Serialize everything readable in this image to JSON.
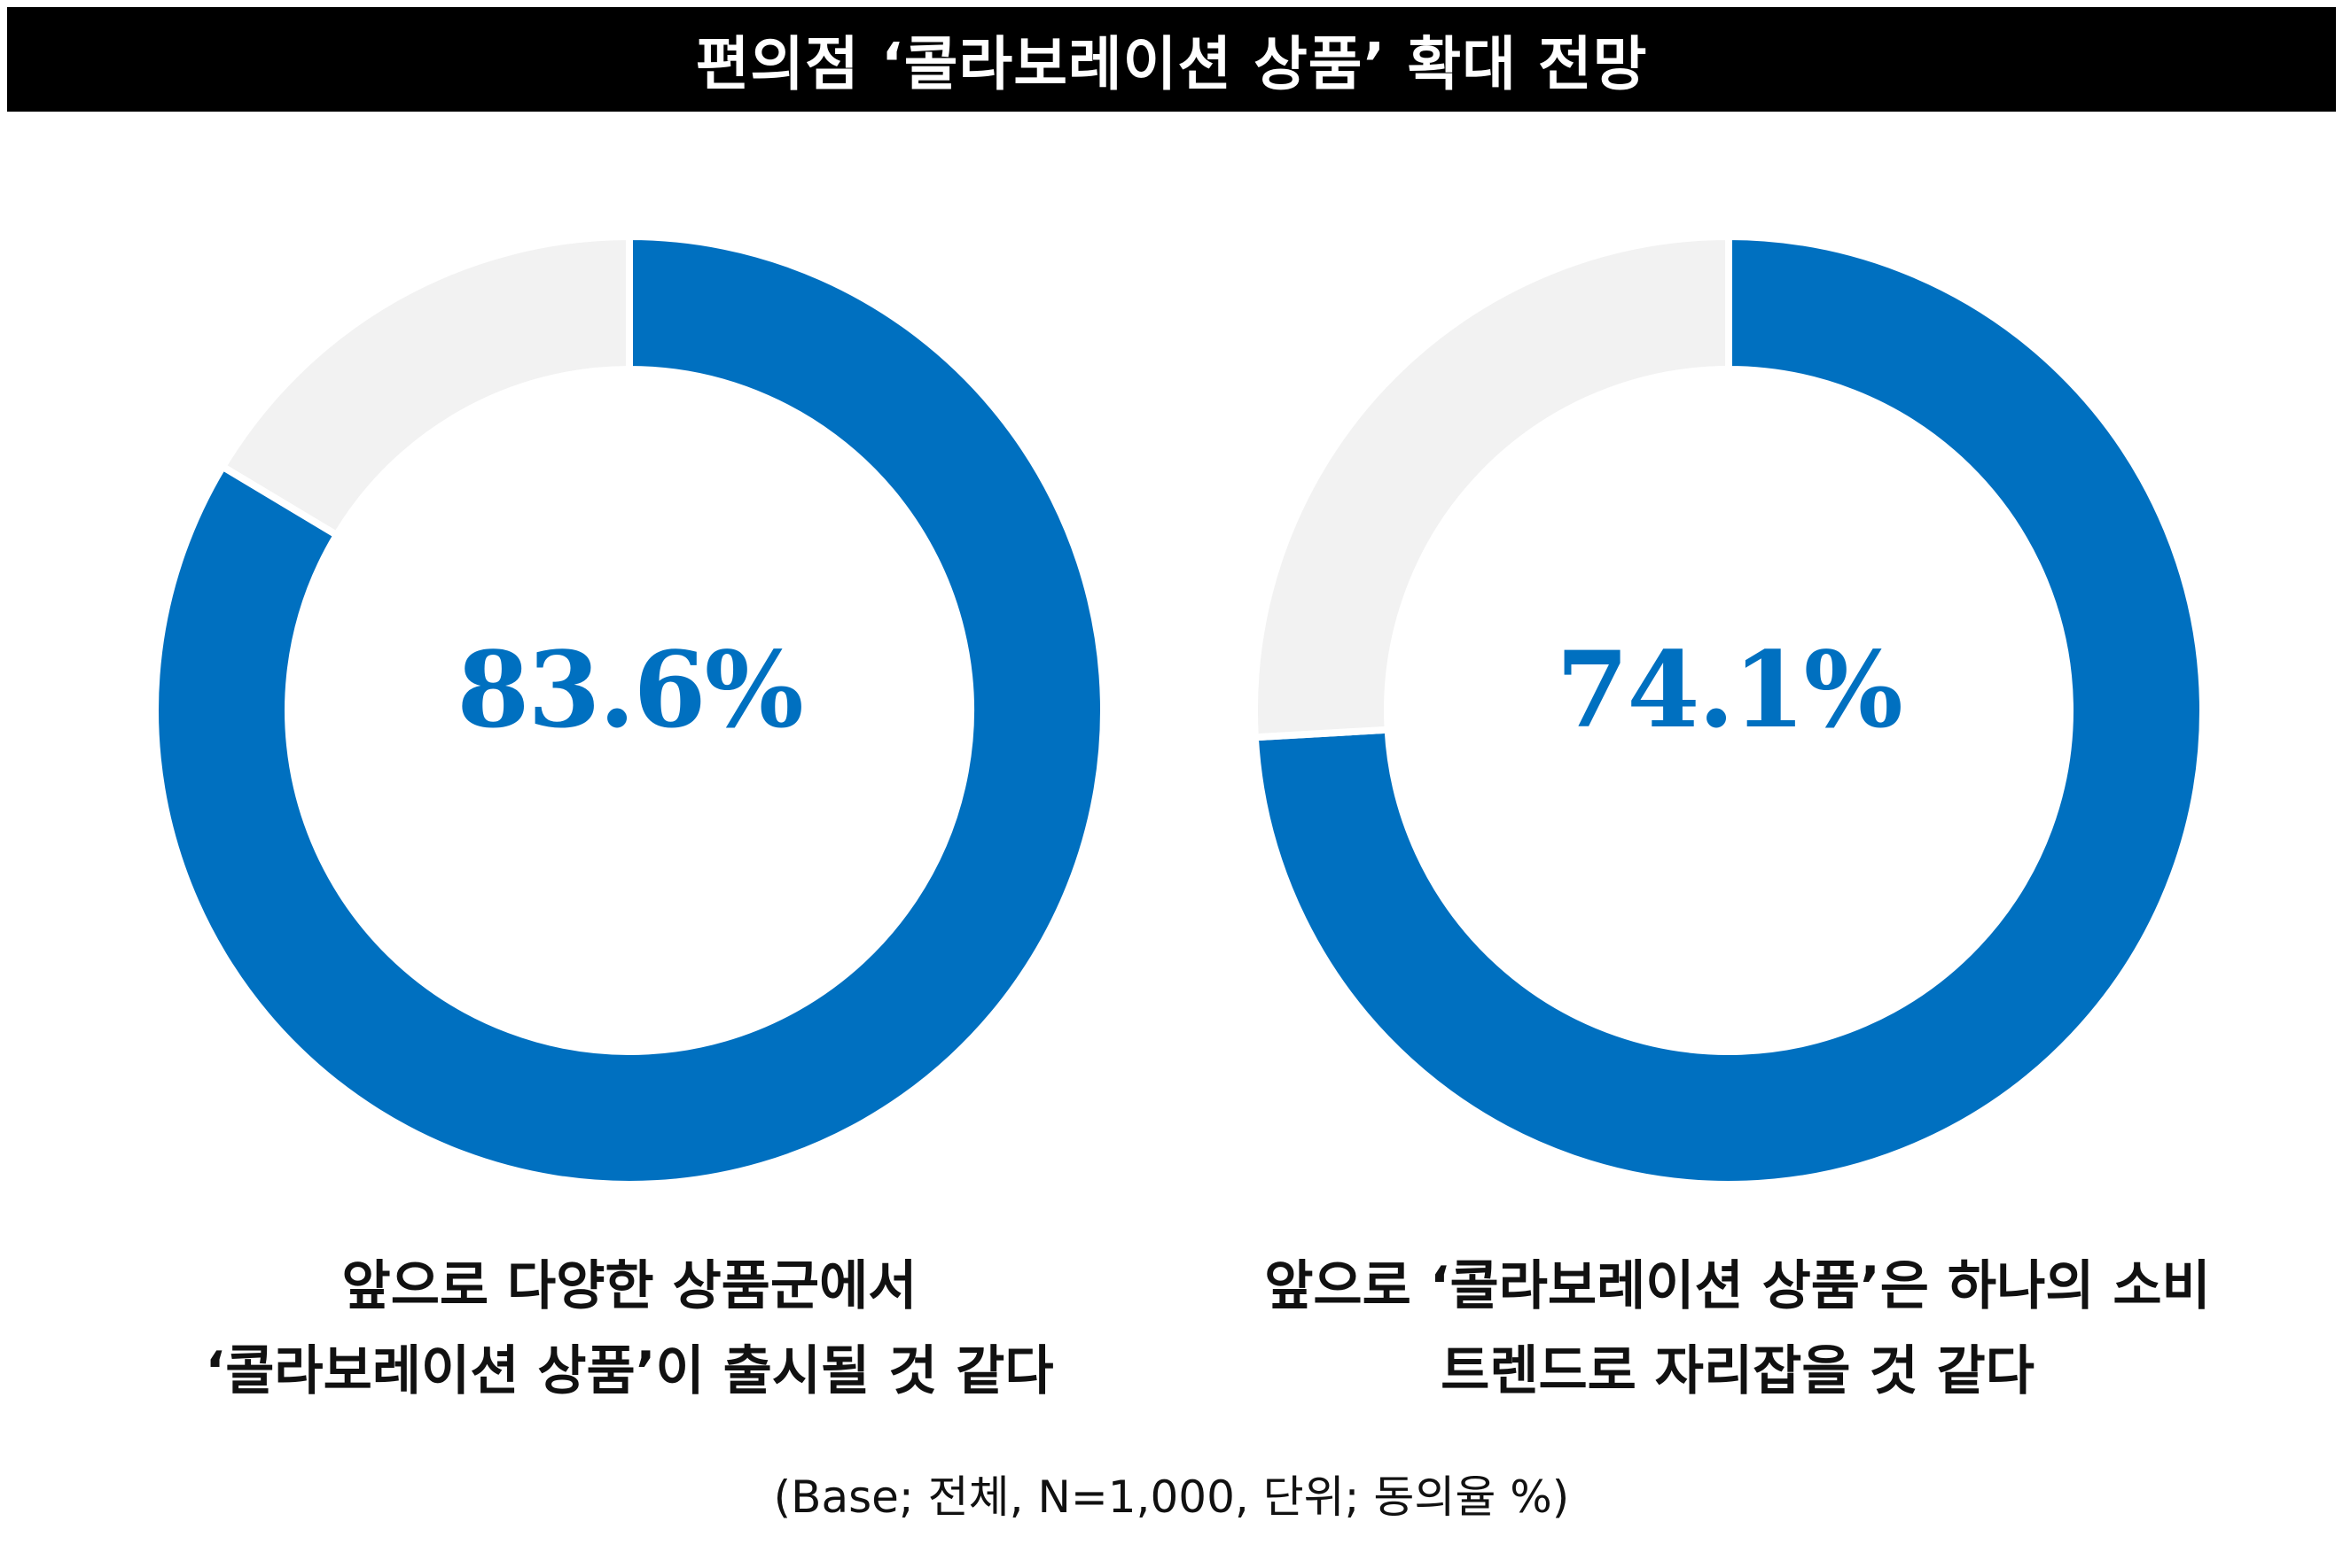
{
  "title": "편의점 ‘콜라보레이션 상품’ 확대 전망",
  "colors": {
    "agree": "#0070C0",
    "rest": "#F2F2F2",
    "separator": "#FFFFFF",
    "title_bg": "#000000",
    "title_text": "#FFFFFF"
  },
  "chart_data": [
    {
      "type": "pie",
      "variant": "donut",
      "center_label": "83.6%",
      "values": [
        83.6,
        16.4
      ],
      "caption_lines": [
        "앞으로 다양한 상품군에서",
        "‘콜라보레이션 상품’이 출시될 것 같다"
      ]
    },
    {
      "type": "pie",
      "variant": "donut",
      "center_label": "74.1%",
      "values": [
        74.1,
        25.9
      ],
      "caption_lines": [
        "앞으로 ‘콜라보레이션 상품’은 하나의 소비",
        "트렌드로 자리잡을 것 같다"
      ]
    }
  ],
  "footnote": "(Base; 전체, N=1,000, 단위; 동의율 %)"
}
